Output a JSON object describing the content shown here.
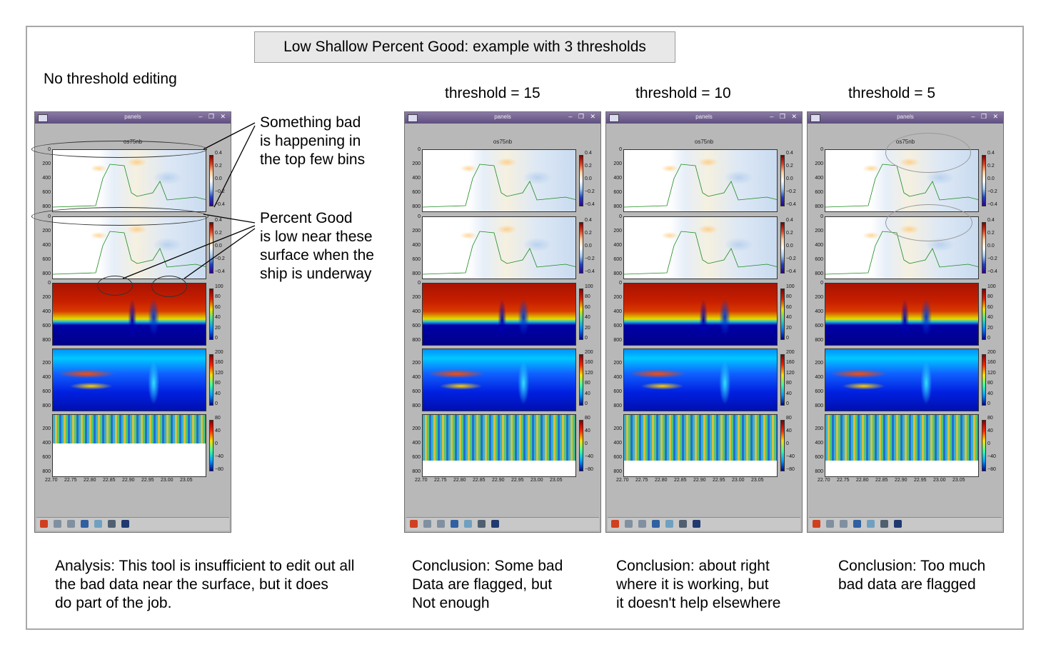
{
  "title": "Low Shallow Percent Good: example with 3 thresholds",
  "no_threshold_label": "No threshold editing",
  "thresholds": [
    {
      "label": "threshold = 15"
    },
    {
      "label": "threshold = 10"
    },
    {
      "label": "threshold = 5"
    }
  ],
  "annotations": {
    "top_bins": [
      "Something bad",
      "is happening in",
      "the top few bins"
    ],
    "percent_good": [
      "Percent Good",
      "is low near these",
      "surface when the",
      "ship is underway"
    ]
  },
  "window": {
    "title": "panels",
    "plot_title": "os75nb",
    "controls": "– ❐ ✕",
    "y_ticks": [
      "0",
      "200",
      "400",
      "600",
      "800"
    ],
    "x_ticks": [
      "22.70",
      "22.75",
      "22.80",
      "22.85",
      "22.90",
      "22.95",
      "23.00",
      "23.05"
    ],
    "velocity_ticks": [
      "0.4",
      "0.2",
      "0.0",
      "−0.2",
      "−0.4"
    ],
    "percent_good_ticks": [
      "100",
      "80",
      "60",
      "40",
      "20",
      "0"
    ],
    "amp_ticks": [
      "200",
      "160",
      "120",
      "80",
      "40",
      "0"
    ],
    "err_ticks": [
      "80",
      "40",
      "0",
      "−40",
      "−80"
    ],
    "toolbar_icons": [
      "home-icon",
      "back-icon",
      "forward-icon",
      "pan-icon",
      "zoom-icon",
      "subplots-icon",
      "save-icon"
    ]
  },
  "conclusions": {
    "analysis": [
      "Analysis:  This tool is insufficient to edit out all",
      "the bad data near the surface, but it does",
      "do part of the job."
    ],
    "t15": [
      "Conclusion: Some bad",
      "Data are flagged, but",
      "Not enough"
    ],
    "t10": [
      "Conclusion: about right",
      "where it is working, but",
      "it doesn't help elsewhere"
    ],
    "t5": [
      "Conclusion: Too much",
      "bad data are flagged"
    ]
  },
  "colors": {
    "frame": "#a8a8a8",
    "title_box": "#e8e8e8",
    "window_bg": "#b8b8b8",
    "titlebar": "#6c5b8c"
  }
}
